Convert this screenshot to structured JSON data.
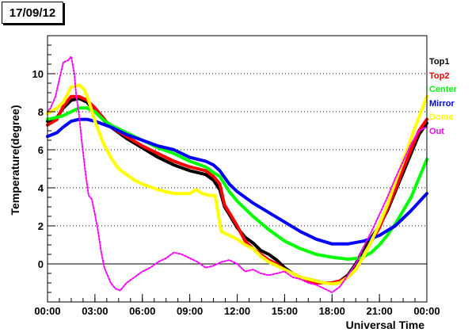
{
  "title": "17/09/12",
  "chart_data": {
    "type": "scatter",
    "xlabel": "Universal Time",
    "ylabel": "Temperature(degree)",
    "xlim": [
      0,
      24
    ],
    "ylim": [
      -2.0,
      12.0
    ],
    "x_ticks": [
      {
        "value": 0,
        "label": "00:00"
      },
      {
        "value": 3,
        "label": "03:00"
      },
      {
        "value": 6,
        "label": "06:00"
      },
      {
        "value": 9,
        "label": "09:00"
      },
      {
        "value": 12,
        "label": "12:00"
      },
      {
        "value": 15,
        "label": "15:00"
      },
      {
        "value": 18,
        "label": "18:00"
      },
      {
        "value": 21,
        "label": "21:00"
      },
      {
        "value": 24,
        "label": "00:00"
      }
    ],
    "y_ticks": [
      {
        "value": 0,
        "label": "0"
      },
      {
        "value": 2,
        "label": "2"
      },
      {
        "value": 4,
        "label": "4"
      },
      {
        "value": 6,
        "label": "6"
      },
      {
        "value": 8,
        "label": "8"
      },
      {
        "value": 10,
        "label": "10"
      }
    ],
    "grid": "horizontal dotted",
    "legend_placement": "right",
    "series": [
      {
        "name": "Top1",
        "color": "#000000",
        "width": 4,
        "points": [
          [
            0,
            7.5
          ],
          [
            0.6,
            7.7
          ],
          [
            1,
            8.2
          ],
          [
            1.5,
            8.6
          ],
          [
            2,
            8.7
          ],
          [
            2.5,
            8.5
          ],
          [
            3,
            8.0
          ],
          [
            3.5,
            7.6
          ],
          [
            4,
            7.2
          ],
          [
            5,
            6.6
          ],
          [
            6,
            6.1
          ],
          [
            7,
            5.6
          ],
          [
            8,
            5.2
          ],
          [
            9,
            4.9
          ],
          [
            10,
            4.7
          ],
          [
            10.5,
            4.4
          ],
          [
            10.9,
            3.9
          ],
          [
            11.2,
            3.0
          ],
          [
            11.5,
            2.6
          ],
          [
            12,
            1.9
          ],
          [
            12.5,
            1.4
          ],
          [
            13,
            1.1
          ],
          [
            13.5,
            0.7
          ],
          [
            14,
            0.5
          ],
          [
            14.5,
            0.2
          ],
          [
            15,
            -0.2
          ],
          [
            15.5,
            -0.5
          ],
          [
            16,
            -0.7
          ],
          [
            16.5,
            -0.8
          ],
          [
            17,
            -0.9
          ],
          [
            17.5,
            -1.0
          ],
          [
            18,
            -1.0
          ],
          [
            18.5,
            -0.9
          ],
          [
            19,
            -0.6
          ],
          [
            19.5,
            0.0
          ],
          [
            20,
            0.8
          ],
          [
            20.5,
            1.4
          ],
          [
            21,
            2.0
          ],
          [
            21.5,
            2.8
          ],
          [
            22,
            3.8
          ],
          [
            22.5,
            4.8
          ],
          [
            23,
            5.8
          ],
          [
            23.5,
            6.8
          ],
          [
            24,
            7.4
          ]
        ]
      },
      {
        "name": "Top2",
        "color": "#ff0000",
        "width": 4,
        "points": [
          [
            0,
            7.3
          ],
          [
            0.6,
            7.6
          ],
          [
            1,
            8.3
          ],
          [
            1.5,
            8.8
          ],
          [
            2,
            8.8
          ],
          [
            2.5,
            8.6
          ],
          [
            3,
            8.2
          ],
          [
            3.5,
            7.7
          ],
          [
            4,
            7.2
          ],
          [
            5,
            6.7
          ],
          [
            6,
            6.2
          ],
          [
            7,
            5.8
          ],
          [
            8,
            5.4
          ],
          [
            9,
            5.1
          ],
          [
            10,
            4.9
          ],
          [
            10.5,
            4.6
          ],
          [
            10.9,
            4.2
          ],
          [
            11.2,
            3.1
          ],
          [
            11.5,
            2.7
          ],
          [
            12,
            2.0
          ],
          [
            12.5,
            1.2
          ],
          [
            13,
            0.8
          ],
          [
            13.5,
            0.5
          ],
          [
            14,
            0.2
          ],
          [
            14.5,
            0.0
          ],
          [
            15,
            -0.3
          ],
          [
            15.5,
            -0.5
          ],
          [
            16,
            -0.7
          ],
          [
            16.5,
            -0.9
          ],
          [
            17,
            -1.0
          ],
          [
            17.5,
            -1.0
          ],
          [
            18,
            -1.0
          ],
          [
            18.5,
            -0.9
          ],
          [
            19,
            -0.7
          ],
          [
            19.5,
            -0.3
          ],
          [
            20,
            0.4
          ],
          [
            20.5,
            1.2
          ],
          [
            21,
            1.9
          ],
          [
            21.5,
            2.9
          ],
          [
            22,
            3.9
          ],
          [
            22.5,
            5.0
          ],
          [
            23,
            6.0
          ],
          [
            23.5,
            7.0
          ],
          [
            24,
            7.6
          ]
        ]
      },
      {
        "name": "Center",
        "color": "#00ff00",
        "width": 4,
        "points": [
          [
            0,
            7.6
          ],
          [
            0.6,
            7.7
          ],
          [
            1,
            7.8
          ],
          [
            1.5,
            8.0
          ],
          [
            2,
            8.2
          ],
          [
            2.5,
            8.2
          ],
          [
            3,
            8.0
          ],
          [
            3.5,
            7.6
          ],
          [
            4,
            7.3
          ],
          [
            5,
            6.9
          ],
          [
            6,
            6.5
          ],
          [
            7,
            6.1
          ],
          [
            8,
            5.8
          ],
          [
            9,
            5.4
          ],
          [
            10,
            5.1
          ],
          [
            10.5,
            4.8
          ],
          [
            10.9,
            4.6
          ],
          [
            11.5,
            3.8
          ],
          [
            12,
            3.3
          ],
          [
            13,
            2.5
          ],
          [
            14,
            1.8
          ],
          [
            15,
            1.2
          ],
          [
            16,
            0.8
          ],
          [
            17,
            0.5
          ],
          [
            18,
            0.35
          ],
          [
            19,
            0.25
          ],
          [
            19.8,
            0.3
          ],
          [
            20.5,
            0.6
          ],
          [
            21,
            1.0
          ],
          [
            21.5,
            1.5
          ],
          [
            22,
            2.1
          ],
          [
            22.5,
            2.8
          ],
          [
            23,
            3.5
          ],
          [
            23.5,
            4.5
          ],
          [
            24,
            5.5
          ]
        ]
      },
      {
        "name": "Mirror",
        "color": "#0000ff",
        "width": 4,
        "points": [
          [
            0,
            6.7
          ],
          [
            0.6,
            6.9
          ],
          [
            1,
            7.2
          ],
          [
            1.5,
            7.5
          ],
          [
            2,
            7.6
          ],
          [
            2.5,
            7.6
          ],
          [
            3,
            7.5
          ],
          [
            4,
            7.2
          ],
          [
            5,
            6.8
          ],
          [
            6,
            6.5
          ],
          [
            7,
            6.2
          ],
          [
            8,
            6.0
          ],
          [
            9,
            5.6
          ],
          [
            10,
            5.4
          ],
          [
            10.5,
            5.2
          ],
          [
            10.9,
            4.9
          ],
          [
            11.5,
            4.2
          ],
          [
            12,
            3.8
          ],
          [
            13,
            3.2
          ],
          [
            14,
            2.7
          ],
          [
            15,
            2.2
          ],
          [
            16,
            1.7
          ],
          [
            17,
            1.3
          ],
          [
            18,
            1.05
          ],
          [
            19,
            1.05
          ],
          [
            20,
            1.2
          ],
          [
            21,
            1.5
          ],
          [
            22,
            2.0
          ],
          [
            23,
            2.8
          ],
          [
            24,
            3.7
          ]
        ]
      },
      {
        "name": "Dome",
        "color": "#ffff00",
        "width": 4,
        "points": [
          [
            0,
            7.9
          ],
          [
            0.6,
            8.2
          ],
          [
            1,
            8.5
          ],
          [
            1.5,
            9.3
          ],
          [
            2,
            9.4
          ],
          [
            2.3,
            9.2
          ],
          [
            2.6,
            8.6
          ],
          [
            3,
            7.5
          ],
          [
            3.5,
            6.4
          ],
          [
            4,
            5.6
          ],
          [
            4.5,
            5.0
          ],
          [
            5,
            4.7
          ],
          [
            5.5,
            4.4
          ],
          [
            6,
            4.2
          ],
          [
            7,
            3.9
          ],
          [
            8,
            3.7
          ],
          [
            9,
            3.7
          ],
          [
            9.4,
            3.9
          ],
          [
            9.8,
            3.7
          ],
          [
            10.2,
            3.6
          ],
          [
            10.6,
            3.6
          ],
          [
            11,
            1.7
          ],
          [
            11.5,
            1.5
          ],
          [
            12,
            1.3
          ],
          [
            12.5,
            1.0
          ],
          [
            13,
            0.8
          ],
          [
            13.5,
            0.4
          ],
          [
            14,
            0.1
          ],
          [
            15,
            -0.3
          ],
          [
            16,
            -0.7
          ],
          [
            17,
            -0.9
          ],
          [
            17.5,
            -1.0
          ],
          [
            18,
            -1.05
          ],
          [
            18.5,
            -1.0
          ],
          [
            19,
            -0.7
          ],
          [
            19.5,
            -0.3
          ],
          [
            20,
            0.4
          ],
          [
            20.5,
            1.2
          ],
          [
            21,
            2.1
          ],
          [
            21.5,
            3.1
          ],
          [
            22,
            4.3
          ],
          [
            22.5,
            5.4
          ],
          [
            23,
            6.6
          ],
          [
            23.5,
            7.7
          ],
          [
            24,
            8.8
          ]
        ]
      },
      {
        "name": "Out",
        "color": "#ff00ff",
        "width": 2,
        "points": [
          [
            0,
            8.0
          ],
          [
            0.2,
            8.2
          ],
          [
            0.5,
            8.8
          ],
          [
            0.8,
            9.9
          ],
          [
            1,
            10.6
          ],
          [
            1.3,
            10.7
          ],
          [
            1.5,
            10.9
          ],
          [
            1.7,
            10.0
          ],
          [
            1.8,
            9.0
          ],
          [
            2,
            7.8
          ],
          [
            2.2,
            6.2
          ],
          [
            2.4,
            4.8
          ],
          [
            2.6,
            3.6
          ],
          [
            2.8,
            3.4
          ],
          [
            3.0,
            2.6
          ],
          [
            3.2,
            1.7
          ],
          [
            3.4,
            0.6
          ],
          [
            3.6,
            -0.2
          ],
          [
            3.8,
            -0.6
          ],
          [
            4,
            -1.0
          ],
          [
            4.3,
            -1.3
          ],
          [
            4.6,
            -1.4
          ],
          [
            5,
            -1.0
          ],
          [
            5.5,
            -0.7
          ],
          [
            6,
            -0.4
          ],
          [
            6.5,
            -0.2
          ],
          [
            7,
            0.1
          ],
          [
            7.5,
            0.3
          ],
          [
            8,
            0.6
          ],
          [
            8.5,
            0.5
          ],
          [
            9,
            0.3
          ],
          [
            9.5,
            0.1
          ],
          [
            10,
            -0.2
          ],
          [
            10.5,
            -0.1
          ],
          [
            11,
            0.1
          ],
          [
            11.5,
            0.2
          ],
          [
            12,
            0.0
          ],
          [
            12.5,
            -0.4
          ],
          [
            13,
            -0.3
          ],
          [
            13.5,
            -0.5
          ],
          [
            14,
            -0.6
          ],
          [
            14.5,
            -0.5
          ],
          [
            15,
            -0.4
          ],
          [
            15.5,
            -0.7
          ],
          [
            16,
            -0.8
          ],
          [
            16.5,
            -1.0
          ],
          [
            17,
            -1.1
          ],
          [
            17.5,
            -1.3
          ],
          [
            18,
            -1.5
          ],
          [
            18.5,
            -1.2
          ],
          [
            19,
            -0.6
          ],
          [
            19.5,
            0.0
          ],
          [
            20,
            0.9
          ],
          [
            20.5,
            1.7
          ],
          [
            21,
            2.6
          ],
          [
            21.5,
            3.5
          ],
          [
            22,
            4.5
          ],
          [
            22.5,
            5.4
          ],
          [
            23,
            6.3
          ],
          [
            23.5,
            7.0
          ],
          [
            24,
            7.2
          ]
        ]
      }
    ]
  }
}
